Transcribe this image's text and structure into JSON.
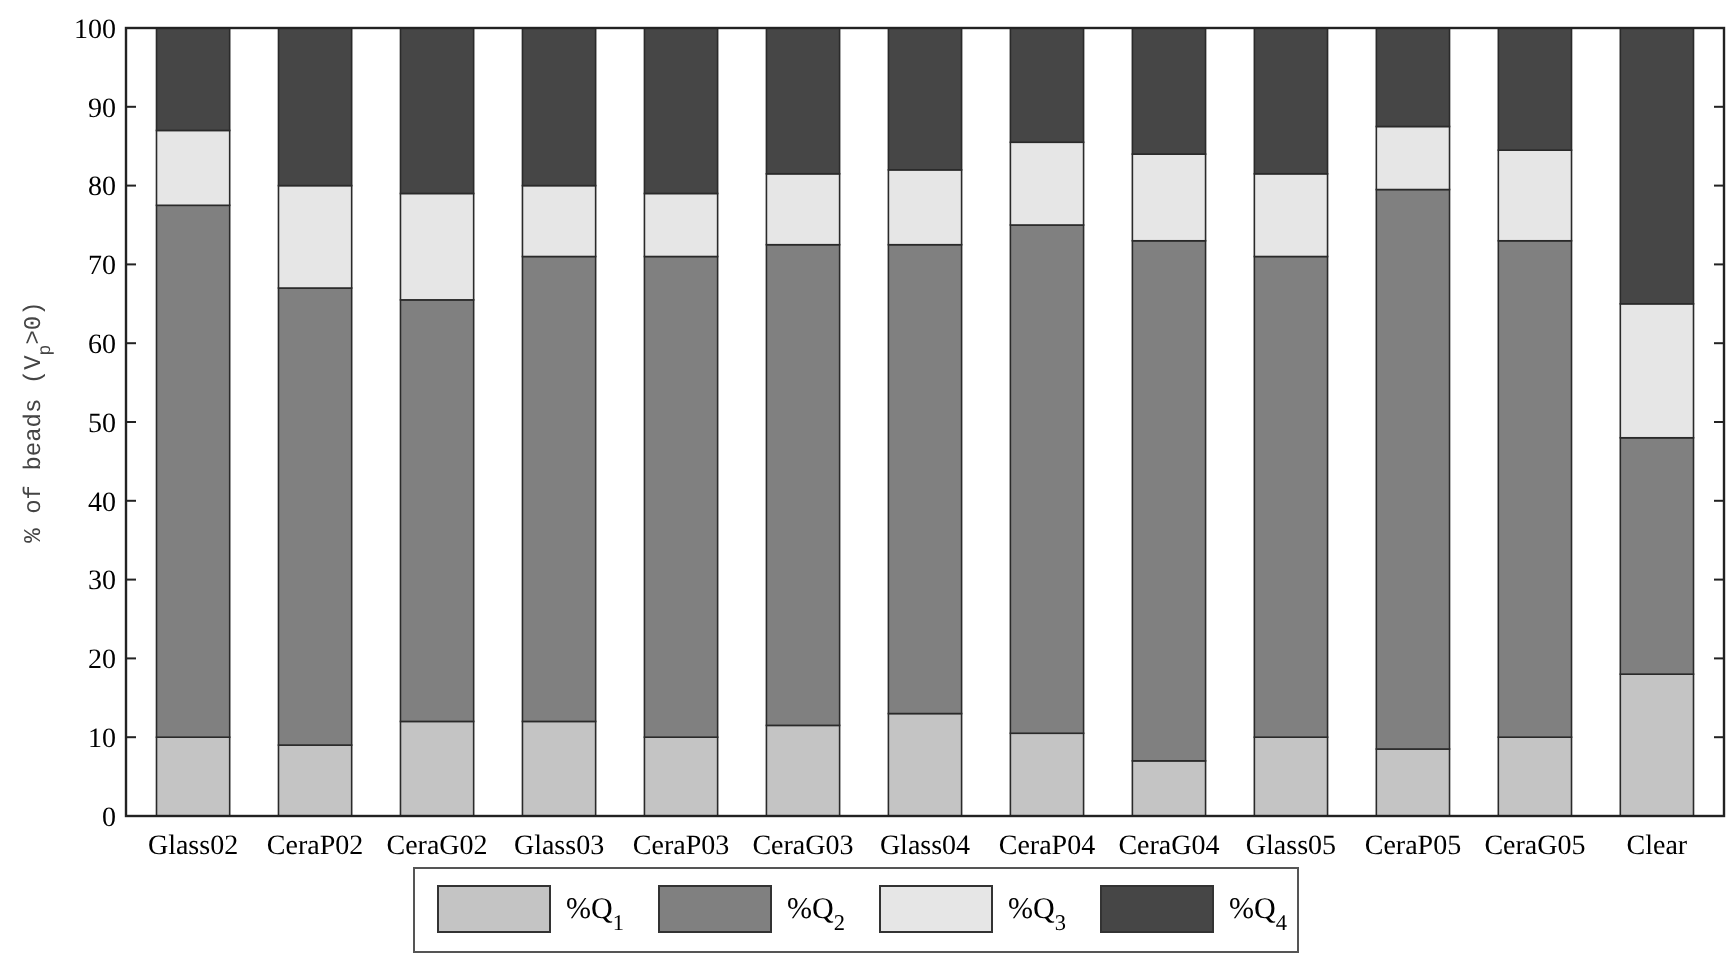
{
  "chart_data": {
    "type": "bar",
    "stacked": true,
    "ylabel": "% of beads (V$_{p}$>0)",
    "categories": [
      "Glass02",
      "CeraP02",
      "CeraG02",
      "Glass03",
      "CeraP03",
      "CeraG03",
      "Glass04",
      "CeraP04",
      "CeraG04",
      "Glass05",
      "CeraP05",
      "CeraG05",
      "Clear"
    ],
    "series": [
      {
        "name": "%Q$_{1}$",
        "color": "#c4c4c4",
        "values": [
          10,
          9,
          12,
          12,
          10,
          11.5,
          13,
          10.5,
          7,
          10,
          8.5,
          10,
          18
        ]
      },
      {
        "name": "%Q$_{2}$",
        "color": "#808080",
        "values": [
          67.5,
          58,
          53.5,
          59,
          61,
          61,
          59.5,
          64.5,
          66,
          61,
          71,
          63,
          30
        ]
      },
      {
        "name": "%Q$_{3}$",
        "color": "#e6e6e6",
        "values": [
          9.5,
          13,
          13.5,
          9,
          8,
          9,
          9.5,
          10.5,
          11,
          10.5,
          8,
          11.5,
          17
        ]
      },
      {
        "name": "%Q$_{4}$",
        "color": "#464646",
        "values": [
          13,
          20,
          21,
          20,
          21,
          18.5,
          18,
          14.5,
          16,
          18.5,
          12.5,
          15.5,
          35
        ]
      }
    ],
    "ylim": [
      0,
      100
    ],
    "yticks": [
      0,
      10,
      20,
      30,
      40,
      50,
      60,
      70,
      80,
      90,
      100
    ],
    "legend": "bottom"
  }
}
